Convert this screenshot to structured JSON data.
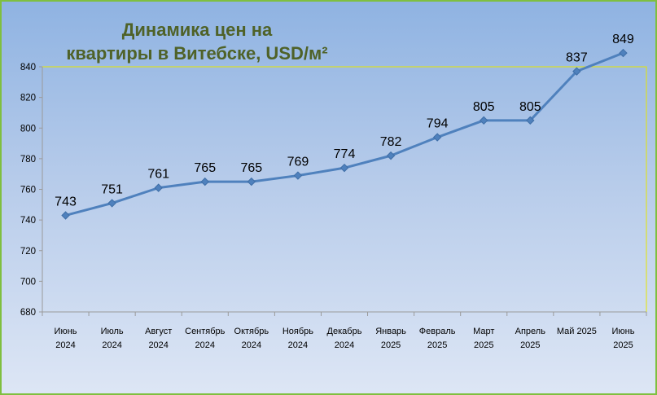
{
  "chart_data": {
    "type": "line",
    "title_line1": "Динамика цен на",
    "title_line2": "квартиры в Витебске, USD/м²",
    "categories": [
      [
        "Июнь",
        "2024"
      ],
      [
        "Июль",
        "2024"
      ],
      [
        "Август",
        "2024"
      ],
      [
        "Сентябрь",
        "2024"
      ],
      [
        "Октябрь",
        "2024"
      ],
      [
        "Ноябрь",
        "2024"
      ],
      [
        "Декабрь",
        "2024"
      ],
      [
        "Январь",
        "2025"
      ],
      [
        "Февраль",
        "2025"
      ],
      [
        "Март",
        "2025"
      ],
      [
        "Апрель",
        "2025"
      ],
      [
        "Май 2025",
        ""
      ],
      [
        "Июнь",
        "2025"
      ]
    ],
    "values": [
      743,
      751,
      761,
      765,
      765,
      769,
      774,
      782,
      794,
      805,
      805,
      837,
      849
    ],
    "ylim": [
      680,
      840
    ],
    "yticks": [
      680,
      700,
      720,
      740,
      760,
      780,
      800,
      820,
      840
    ],
    "grid": false,
    "data_labels": true,
    "line_color": "#4f81bd",
    "plot_border_color": "#e6e600"
  }
}
